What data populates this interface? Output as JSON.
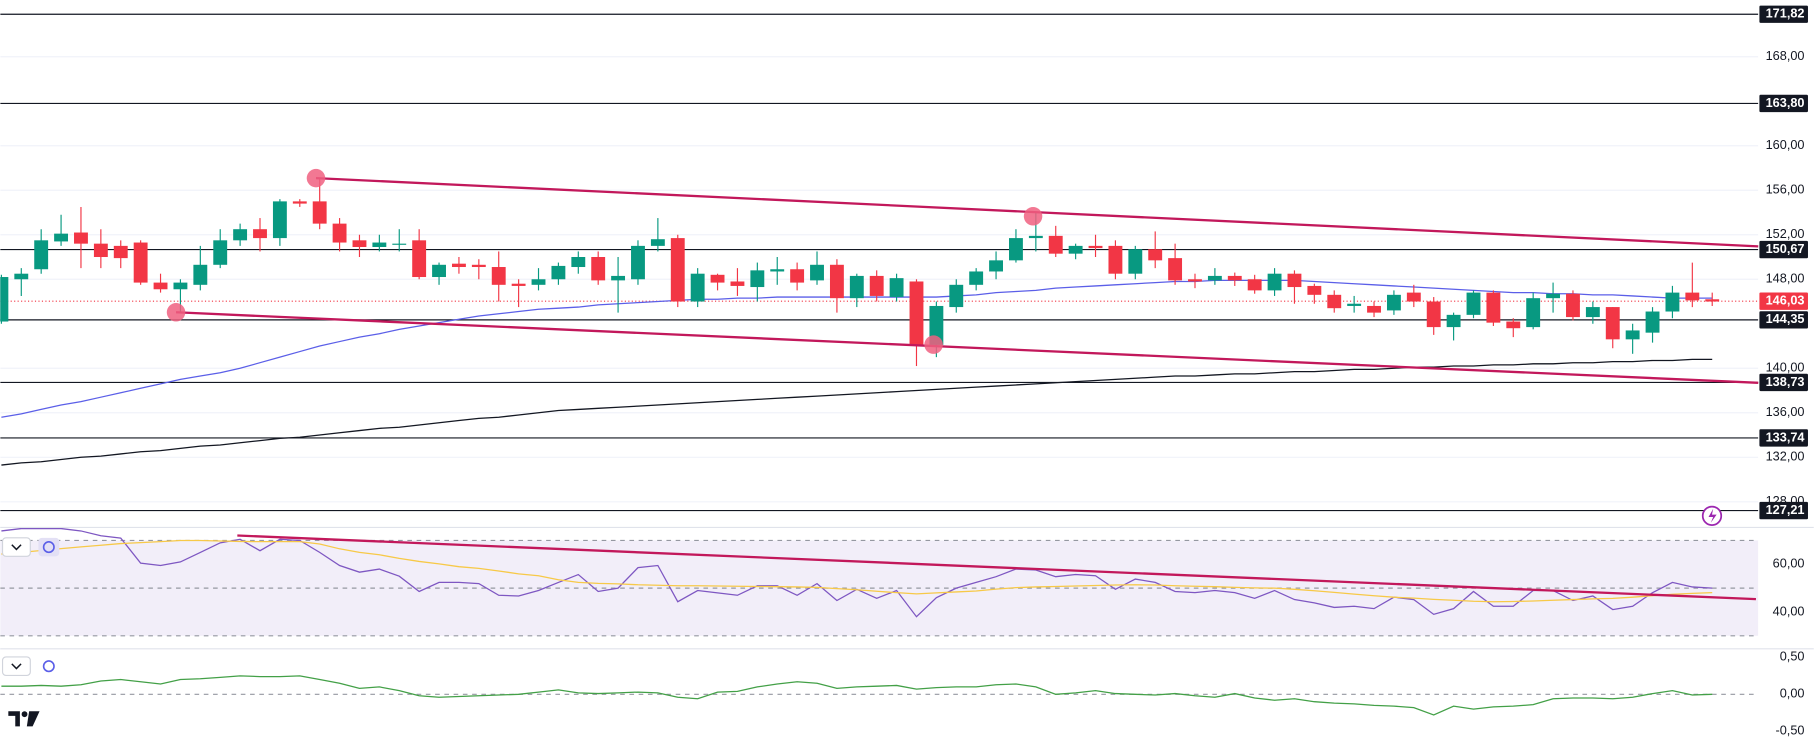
{
  "chart_data": [
    {
      "type": "candlestick",
      "up_color": "#089981",
      "down_color": "#f23645",
      "ylim": [
        125.8,
        173.1
      ],
      "yticks": [
        {
          "value": 168,
          "label": "168,00"
        },
        {
          "value": 160,
          "label": "160,00"
        },
        {
          "value": 156,
          "label": "156,00"
        },
        {
          "value": 152,
          "label": "152,00"
        },
        {
          "value": 148,
          "label": "148,00"
        },
        {
          "value": 140,
          "label": "140,00"
        },
        {
          "value": 136,
          "label": "136,00"
        },
        {
          "value": 132,
          "label": "132,00"
        },
        {
          "value": 128,
          "label": "128,00"
        }
      ],
      "grid": true,
      "levels": [
        {
          "value": 171.82,
          "label": "171,82"
        },
        {
          "value": 163.8,
          "label": "163,80"
        },
        {
          "value": 150.67,
          "label": "150,67"
        },
        {
          "value": 144.35,
          "label": "144,35"
        },
        {
          "value": 138.73,
          "label": "138,73"
        },
        {
          "value": 133.74,
          "label": "133,74"
        },
        {
          "value": 127.21,
          "label": "127,21"
        }
      ],
      "last_price": {
        "value": 146.03,
        "label": "146,03"
      },
      "open": [
        144.2,
        148.0,
        148.9,
        151.4,
        152.2,
        151.2,
        151.0,
        151.3,
        147.7,
        147.1,
        147.5,
        149.3,
        151.5,
        152.5,
        151.7,
        155.0,
        155.0,
        153.0,
        151.5,
        150.9,
        151.1,
        151.5,
        148.2,
        149.4,
        149.3,
        149.1,
        147.6,
        147.5,
        148.0,
        149.1,
        150.0,
        147.9,
        148.0,
        151.0,
        151.7,
        146.0,
        148.4,
        147.8,
        147.3,
        148.7,
        148.9,
        147.9,
        149.3,
        146.3,
        148.3,
        146.4,
        147.8,
        142.1,
        145.5,
        147.5,
        148.7,
        149.7,
        151.7,
        151.9,
        150.3,
        151.0,
        151.0,
        148.5,
        150.7,
        149.9,
        148.0,
        147.9,
        148.3,
        148.0,
        147.0,
        148.5,
        147.4,
        146.6,
        145.6,
        145.6,
        145.2,
        146.8,
        146.0,
        143.7,
        144.8,
        146.8,
        144.2,
        143.7,
        146.3,
        146.7,
        144.6,
        145.5,
        142.6,
        143.2,
        145.1,
        146.8,
        146.2
      ],
      "high": [
        148.4,
        149.0,
        152.5,
        153.8,
        154.5,
        152.5,
        151.5,
        151.5,
        148.5,
        148.0,
        151.0,
        152.5,
        153.0,
        153.5,
        155.2,
        155.2,
        157.0,
        153.5,
        152.0,
        152.0,
        152.5,
        152.5,
        149.5,
        150.0,
        149.8,
        150.5,
        148.0,
        149.0,
        149.5,
        150.5,
        150.5,
        150.0,
        151.5,
        153.5,
        152.0,
        149.0,
        148.5,
        149.0,
        149.5,
        150.0,
        149.5,
        150.5,
        149.8,
        148.5,
        148.8,
        148.5,
        148.0,
        146.0,
        148.0,
        149.0,
        150.5,
        152.5,
        154.0,
        152.8,
        151.2,
        152.0,
        151.5,
        151.0,
        152.3,
        151.2,
        148.5,
        149.0,
        148.6,
        148.4,
        149.0,
        148.8,
        147.6,
        147.0,
        146.5,
        146.0,
        147.0,
        147.5,
        146.4,
        145.0,
        147.0,
        147.0,
        144.5,
        146.8,
        147.7,
        147.0,
        146.0,
        145.5,
        144.0,
        145.5,
        147.4,
        149.5,
        146.8
      ],
      "low": [
        144.0,
        146.5,
        148.5,
        151.0,
        149.0,
        149.0,
        149.0,
        147.5,
        146.8,
        145.0,
        147.0,
        149.0,
        151.0,
        150.5,
        151.0,
        154.5,
        152.5,
        150.5,
        150.0,
        150.5,
        150.5,
        148.0,
        147.5,
        148.5,
        148.0,
        146.0,
        145.5,
        147.0,
        147.5,
        148.5,
        147.5,
        145.0,
        147.5,
        150.5,
        145.5,
        145.5,
        147.0,
        146.5,
        146.0,
        147.5,
        147.0,
        147.5,
        145.0,
        145.5,
        146.0,
        146.0,
        140.2,
        141.0,
        145.0,
        147.0,
        148.0,
        149.5,
        150.5,
        150.0,
        149.8,
        150.0,
        148.0,
        148.0,
        149.0,
        147.5,
        147.2,
        147.5,
        147.4,
        146.7,
        146.5,
        145.8,
        145.8,
        145.0,
        145.0,
        144.6,
        144.8,
        145.5,
        143.0,
        142.5,
        144.5,
        143.8,
        142.8,
        143.5,
        145.0,
        144.3,
        144.0,
        141.8,
        141.3,
        142.3,
        144.5,
        145.5,
        145.6
      ],
      "close": [
        148.2,
        148.5,
        151.5,
        152.1,
        151.2,
        150.0,
        149.9,
        147.7,
        147.1,
        147.7,
        149.3,
        151.5,
        152.5,
        151.7,
        155.0,
        154.8,
        153.0,
        151.3,
        150.9,
        151.3,
        151.2,
        148.2,
        149.3,
        149.1,
        149.1,
        147.5,
        147.4,
        148.0,
        149.2,
        150.0,
        147.9,
        148.3,
        151.0,
        151.6,
        146.0,
        148.5,
        147.7,
        147.4,
        148.8,
        148.9,
        147.7,
        149.3,
        146.3,
        148.3,
        146.5,
        148.1,
        142.1,
        145.6,
        147.5,
        148.7,
        149.7,
        151.7,
        151.9,
        150.3,
        151.0,
        150.8,
        148.5,
        150.7,
        149.7,
        147.9,
        147.8,
        148.3,
        147.9,
        147.0,
        148.5,
        147.3,
        146.6,
        145.4,
        145.8,
        145.0,
        146.6,
        146.0,
        143.7,
        144.8,
        146.8,
        144.1,
        143.6,
        146.3,
        146.7,
        144.6,
        145.5,
        142.6,
        143.4,
        145.1,
        146.8,
        146.1,
        146.0
      ],
      "series": [
        {
          "color": "#5b5fe8",
          "values": [
            135.6,
            135.9,
            136.3,
            136.7,
            137.0,
            137.4,
            137.8,
            138.2,
            138.6,
            139.0,
            139.3,
            139.6,
            140.0,
            140.5,
            141.0,
            141.5,
            142.0,
            142.4,
            142.8,
            143.1,
            143.5,
            143.8,
            144.1,
            144.4,
            144.7,
            144.9,
            145.1,
            145.3,
            145.4,
            145.5,
            145.7,
            145.8,
            145.9,
            146.0,
            146.1,
            146.2,
            146.2,
            146.3,
            146.3,
            146.4,
            146.4,
            146.4,
            146.4,
            146.4,
            146.4,
            146.4,
            146.4,
            146.4,
            146.5,
            146.6,
            146.8,
            146.9,
            147.0,
            147.2,
            147.3,
            147.4,
            147.5,
            147.6,
            147.7,
            147.8,
            147.8,
            147.9,
            147.9,
            147.9,
            147.9,
            147.9,
            147.8,
            147.7,
            147.6,
            147.5,
            147.4,
            147.3,
            147.2,
            147.1,
            147.0,
            146.9,
            146.8,
            146.8,
            146.7,
            146.7,
            146.6,
            146.6,
            146.5,
            146.4,
            146.3,
            146.3,
            146.3
          ]
        },
        {
          "color": "#131722",
          "values": [
            131.3,
            131.5,
            131.6,
            131.8,
            132.0,
            132.1,
            132.3,
            132.5,
            132.6,
            132.8,
            133.0,
            133.1,
            133.3,
            133.5,
            133.7,
            133.8,
            134.0,
            134.2,
            134.4,
            134.6,
            134.7,
            134.9,
            135.1,
            135.3,
            135.5,
            135.6,
            135.8,
            136.0,
            136.2,
            136.3,
            136.4,
            136.5,
            136.6,
            136.7,
            136.8,
            136.9,
            137.0,
            137.1,
            137.2,
            137.3,
            137.4,
            137.5,
            137.6,
            137.7,
            137.8,
            137.9,
            138.0,
            138.1,
            138.2,
            138.3,
            138.4,
            138.5,
            138.6,
            138.7,
            138.8,
            138.9,
            139.0,
            139.1,
            139.2,
            139.3,
            139.3,
            139.4,
            139.5,
            139.5,
            139.6,
            139.7,
            139.7,
            139.8,
            139.9,
            139.9,
            140.0,
            140.1,
            140.1,
            140.2,
            140.2,
            140.3,
            140.3,
            140.4,
            140.4,
            140.5,
            140.5,
            140.6,
            140.6,
            140.7,
            140.7,
            140.8,
            140.8
          ]
        }
      ]
    },
    {
      "type": "line",
      "ylim": [
        25,
        75
      ],
      "yticks": [
        {
          "value": 60,
          "label": "60,00"
        },
        {
          "value": 40,
          "label": "40,00"
        }
      ],
      "dashed_lines": [
        70,
        50,
        30
      ],
      "band_color": "#7e57c2",
      "series": [
        {
          "color": "#7e57c2",
          "values": [
            74,
            75,
            75,
            75,
            74,
            72,
            71,
            60.5,
            59.5,
            61,
            65,
            69,
            70.5,
            65.7,
            70.5,
            70,
            65,
            59.5,
            56.7,
            58,
            55,
            48.6,
            52.4,
            52.4,
            51.9,
            47,
            46.7,
            49,
            52.4,
            55.7,
            48.6,
            50,
            58.6,
            59.5,
            44.3,
            49,
            48,
            47,
            51,
            51,
            47,
            51.9,
            44.8,
            49.5,
            45.7,
            49,
            38,
            46,
            50,
            52.4,
            54.8,
            58,
            57.6,
            54.8,
            55.7,
            55.2,
            49.5,
            53.8,
            52.4,
            48.6,
            48.1,
            49,
            48.1,
            45.7,
            49,
            45.2,
            43.8,
            41.9,
            42.4,
            41.4,
            46.2,
            45.2,
            39,
            41.4,
            48.6,
            42.4,
            42.4,
            49,
            49,
            44.8,
            46.7,
            41,
            42.4,
            48.1,
            52.4,
            50.5,
            50
          ]
        },
        {
          "color": "#f7c948",
          "values": [
            64.3,
            65,
            65.8,
            66.6,
            67.3,
            68,
            68.7,
            69.1,
            69.5,
            70,
            70,
            69.8,
            69.6,
            69.5,
            69.5,
            69.5,
            68.5,
            66.5,
            65,
            64,
            62.5,
            61.2,
            60.2,
            59,
            58.3,
            57.2,
            56,
            55.2,
            53.5,
            52.4,
            52,
            51.8,
            51.4,
            51.2,
            51,
            51,
            50.9,
            50.8,
            50.7,
            50.6,
            50.5,
            50.3,
            49.8,
            49.3,
            48.7,
            48.1,
            47.6,
            48,
            48.4,
            48.8,
            49.6,
            50.2,
            50.5,
            50.7,
            50.9,
            51.1,
            51.3,
            51.4,
            51.3,
            51,
            50.8,
            50.6,
            50.3,
            50.1,
            50,
            49.5,
            48.9,
            48.2,
            47.5,
            46.8,
            46.2,
            45.8,
            45.3,
            44.9,
            44.5,
            44.3,
            44.4,
            44.6,
            44.9,
            45.2,
            45.5,
            45.7,
            46.2,
            46.8,
            47.4,
            47.8,
            48.1
          ]
        }
      ]
    },
    {
      "type": "line",
      "ylim": [
        -0.7,
        0.6
      ],
      "yticks": [
        {
          "value": 0.5,
          "label": "0,50"
        },
        {
          "value": 0,
          "label": "0,00"
        },
        {
          "value": -0.5,
          "label": "-0,50"
        }
      ],
      "dashed_lines": [
        0
      ],
      "series": [
        {
          "color": "#43a047",
          "values": [
            0.11,
            0.11,
            0.12,
            0.11,
            0.13,
            0.18,
            0.2,
            0.17,
            0.14,
            0.2,
            0.21,
            0.23,
            0.25,
            0.24,
            0.24,
            0.25,
            0.2,
            0.15,
            0.08,
            0.1,
            0.05,
            -0.02,
            -0.04,
            -0.03,
            -0.02,
            -0.01,
            0,
            0.03,
            0.06,
            0.02,
            0.01,
            0.02,
            0.03,
            0.02,
            -0.04,
            -0.06,
            0.03,
            0.04,
            0.1,
            0.14,
            0.17,
            0.15,
            0.08,
            0.1,
            0.11,
            0.12,
            0.07,
            0.09,
            0.1,
            0.1,
            0.13,
            0.14,
            0.1,
            0,
            0.02,
            0.05,
            0.01,
            0,
            -0.01,
            0.01,
            -0.02,
            -0.04,
            0.01,
            -0.05,
            -0.08,
            -0.06,
            -0.1,
            -0.12,
            -0.13,
            -0.15,
            -0.16,
            -0.18,
            -0.28,
            -0.16,
            -0.2,
            -0.17,
            -0.16,
            -0.14,
            -0.06,
            -0.05,
            -0.05,
            -0.06,
            -0.04,
            0.01,
            0.05,
            -0.01,
            0
          ]
        }
      ]
    }
  ]
}
